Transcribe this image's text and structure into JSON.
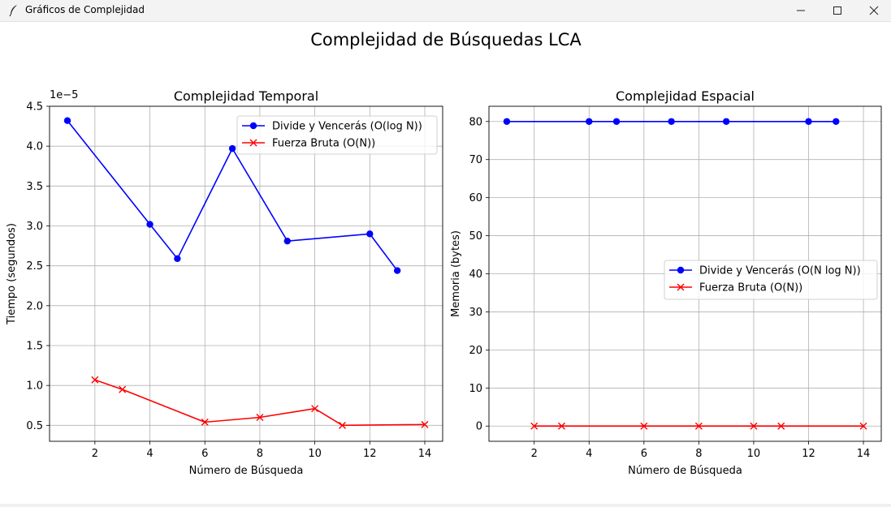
{
  "window": {
    "title": "Gráficos de Complejidad",
    "icon": "feather-icon",
    "controls": [
      "minimize-icon",
      "maximize-icon",
      "close-icon"
    ]
  },
  "figure": {
    "suptitle": "Complejidad de Búsquedas LCA"
  },
  "chart_data": [
    {
      "type": "line",
      "title": "Complejidad Temporal",
      "xlabel": "Número de Búsqueda",
      "ylabel": "Tiempo (segundos)",
      "offset_text": "1e−5",
      "xlim": [
        0.35,
        14.65
      ],
      "ylim": [
        0.3,
        4.5
      ],
      "xticks": [
        2,
        4,
        6,
        8,
        10,
        12,
        14
      ],
      "yticks": [
        0.5,
        1.0,
        1.5,
        2.0,
        2.5,
        3.0,
        3.5,
        4.0,
        4.5
      ],
      "ytick_labels": [
        "0.5",
        "1.0",
        "1.5",
        "2.0",
        "2.5",
        "3.0",
        "3.5",
        "4.0",
        "4.5"
      ],
      "grid": true,
      "legend_position": "top-right",
      "series": [
        {
          "name": "Divide y Vencerás (O(log N))",
          "color": "#0000ff",
          "marker": "circle",
          "x": [
            1,
            4,
            5,
            7,
            9,
            12,
            13
          ],
          "y": [
            4.32,
            3.02,
            2.59,
            3.97,
            2.81,
            2.9,
            2.44
          ]
        },
        {
          "name": "Fuerza Bruta (O(N))",
          "color": "#ff0000",
          "marker": "x",
          "x": [
            2,
            3,
            6,
            8,
            10,
            11,
            14
          ],
          "y": [
            1.07,
            0.95,
            0.54,
            0.6,
            0.71,
            0.5,
            0.51
          ]
        }
      ]
    },
    {
      "type": "line",
      "title": "Complejidad Espacial",
      "xlabel": "Número de Búsqueda",
      "ylabel": "Memoria (bytes)",
      "offset_text": "",
      "xlim": [
        0.35,
        14.65
      ],
      "ylim": [
        -4,
        84
      ],
      "xticks": [
        2,
        4,
        6,
        8,
        10,
        12,
        14
      ],
      "yticks": [
        0,
        10,
        20,
        30,
        40,
        50,
        60,
        70,
        80
      ],
      "ytick_labels": [
        "0",
        "10",
        "20",
        "30",
        "40",
        "50",
        "60",
        "70",
        "80"
      ],
      "grid": true,
      "legend_position": "center-right",
      "series": [
        {
          "name": "Divide y Vencerás (O(N log N))",
          "color": "#0000ff",
          "marker": "circle",
          "x": [
            1,
            4,
            5,
            7,
            9,
            12,
            13
          ],
          "y": [
            80,
            80,
            80,
            80,
            80,
            80,
            80
          ]
        },
        {
          "name": "Fuerza Bruta (O(N))",
          "color": "#ff0000",
          "marker": "x",
          "x": [
            2,
            3,
            6,
            8,
            10,
            11,
            14
          ],
          "y": [
            0,
            0,
            0,
            0,
            0,
            0,
            0
          ]
        }
      ]
    }
  ]
}
